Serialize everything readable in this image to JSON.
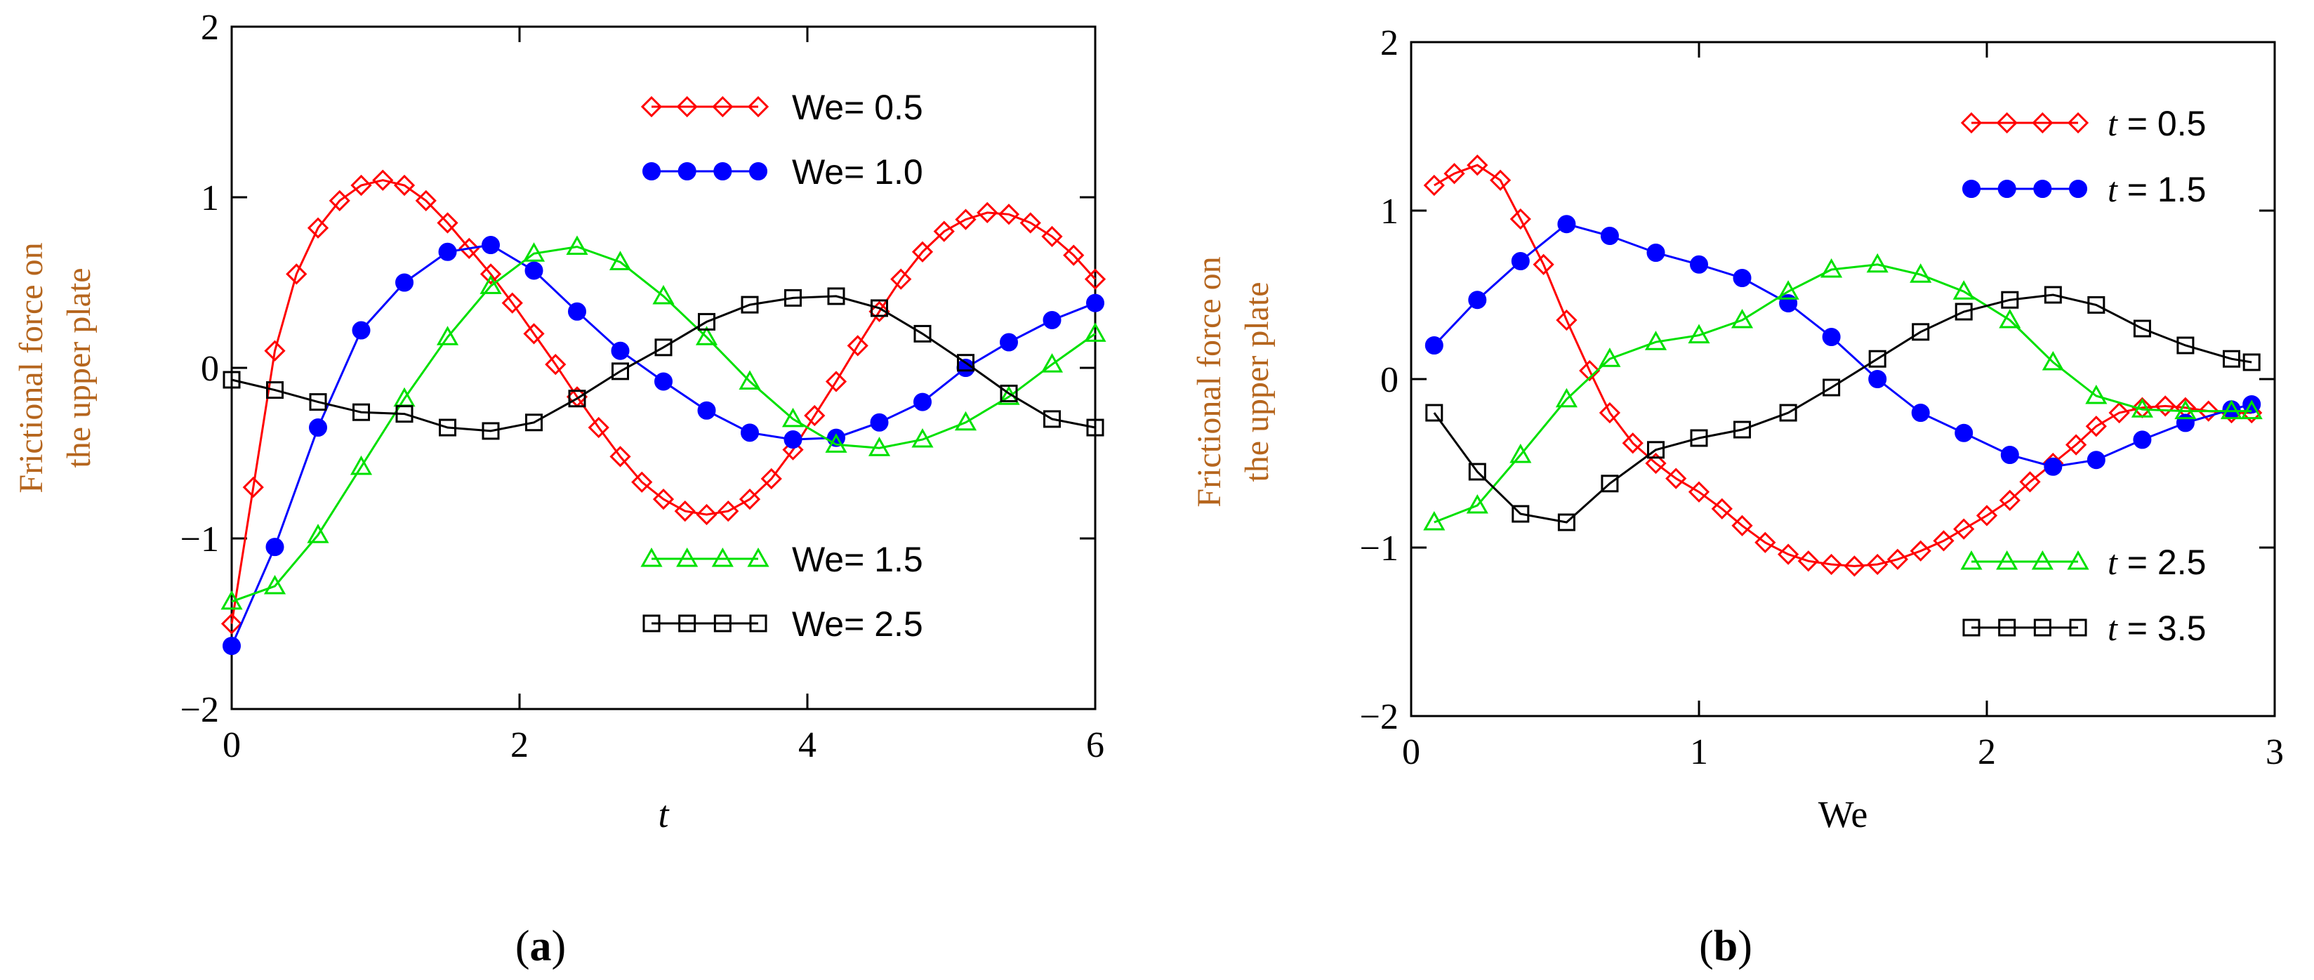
{
  "chart_data": [
    {
      "type": "line",
      "panel_label": "(a)",
      "panel_letter": "a",
      "xlabel": "t",
      "ylabel_lines": [
        "Frictional force on",
        "the upper plate"
      ],
      "xlim": [
        0,
        6
      ],
      "ylim": [
        -2,
        2
      ],
      "xticks": [
        "0",
        "2",
        "4",
        "6"
      ],
      "yticks": [
        "2",
        "1",
        "0",
        "−1",
        "−2"
      ],
      "series": [
        {
          "name": "We = 0.5",
          "label_text": "We= 0.5",
          "color": "#ff0000",
          "marker": "diamond",
          "legend_pos": "top",
          "x": [
            0,
            0.15,
            0.3,
            0.45,
            0.6,
            0.75,
            0.9,
            1.05,
            1.2,
            1.35,
            1.5,
            1.65,
            1.8,
            1.95,
            2.1,
            2.25,
            2.4,
            2.55,
            2.7,
            2.85,
            3.0,
            3.15,
            3.3,
            3.45,
            3.6,
            3.75,
            3.9,
            4.05,
            4.2,
            4.35,
            4.5,
            4.65,
            4.8,
            4.95,
            5.1,
            5.25,
            5.4,
            5.55,
            5.7,
            5.85,
            6.0
          ],
          "y": [
            -1.5,
            -0.7,
            0.1,
            0.55,
            0.82,
            0.98,
            1.07,
            1.1,
            1.07,
            0.98,
            0.85,
            0.7,
            0.55,
            0.38,
            0.2,
            0.02,
            -0.17,
            -0.35,
            -0.52,
            -0.67,
            -0.77,
            -0.84,
            -0.86,
            -0.84,
            -0.77,
            -0.65,
            -0.48,
            -0.28,
            -0.08,
            0.13,
            0.33,
            0.52,
            0.68,
            0.8,
            0.87,
            0.91,
            0.9,
            0.85,
            0.77,
            0.66,
            0.52
          ]
        },
        {
          "name": "We = 1.0",
          "label_text": "We= 1.0",
          "color": "#0000ff",
          "marker": "circle",
          "legend_pos": "top",
          "x": [
            0,
            0.3,
            0.6,
            0.9,
            1.2,
            1.5,
            1.8,
            2.1,
            2.4,
            2.7,
            3.0,
            3.3,
            3.6,
            3.9,
            4.2,
            4.5,
            4.8,
            5.1,
            5.4,
            5.7,
            6.0
          ],
          "y": [
            -1.63,
            -1.05,
            -0.35,
            0.22,
            0.5,
            0.68,
            0.72,
            0.57,
            0.33,
            0.1,
            -0.08,
            -0.25,
            -0.38,
            -0.42,
            -0.41,
            -0.32,
            -0.2,
            0.0,
            0.15,
            0.28,
            0.38
          ]
        },
        {
          "name": "We = 1.5",
          "label_text": "We= 1.5",
          "color": "#00e000",
          "marker": "triangle",
          "legend_pos": "bottom",
          "x": [
            0,
            0.3,
            0.6,
            0.9,
            1.2,
            1.5,
            1.8,
            2.1,
            2.4,
            2.7,
            3.0,
            3.3,
            3.6,
            3.9,
            4.2,
            4.5,
            4.8,
            5.1,
            5.4,
            5.7,
            6.0
          ],
          "y": [
            -1.37,
            -1.28,
            -0.98,
            -0.58,
            -0.18,
            0.18,
            0.48,
            0.67,
            0.71,
            0.62,
            0.42,
            0.18,
            -0.08,
            -0.3,
            -0.45,
            -0.47,
            -0.42,
            -0.32,
            -0.17,
            0.02,
            0.2
          ]
        },
        {
          "name": "We = 2.5",
          "label_text": "We= 2.5",
          "color": "#000000",
          "marker": "square",
          "legend_pos": "bottom",
          "x": [
            0,
            0.3,
            0.6,
            0.9,
            1.2,
            1.5,
            1.8,
            2.1,
            2.4,
            2.7,
            3.0,
            3.3,
            3.6,
            3.9,
            4.2,
            4.5,
            4.8,
            5.1,
            5.4,
            5.7,
            6.0
          ],
          "y": [
            -0.07,
            -0.13,
            -0.2,
            -0.26,
            -0.27,
            -0.35,
            -0.37,
            -0.32,
            -0.18,
            -0.02,
            0.12,
            0.27,
            0.37,
            0.41,
            0.42,
            0.35,
            0.2,
            0.03,
            -0.15,
            -0.3,
            -0.35
          ]
        }
      ]
    },
    {
      "type": "line",
      "panel_label": "(b)",
      "panel_letter": "b",
      "xlabel": "We",
      "ylabel_lines": [
        "Frictional force on",
        "the upper plate"
      ],
      "xlim": [
        0,
        3
      ],
      "ylim": [
        -2,
        2
      ],
      "xticks": [
        "0",
        "1",
        "2",
        "3"
      ],
      "yticks": [
        "2",
        "1",
        "0",
        "−1",
        "−2"
      ],
      "series": [
        {
          "name": "t = 0.5",
          "label_text": " = 0.5",
          "label_var": "t",
          "color": "#ff0000",
          "marker": "diamond",
          "legend_pos": "top",
          "x": [
            0.08,
            0.15,
            0.23,
            0.31,
            0.38,
            0.46,
            0.54,
            0.62,
            0.69,
            0.77,
            0.85,
            0.92,
            1.0,
            1.08,
            1.15,
            1.23,
            1.31,
            1.38,
            1.46,
            1.54,
            1.62,
            1.69,
            1.77,
            1.85,
            1.92,
            2.0,
            2.08,
            2.15,
            2.23,
            2.31,
            2.38,
            2.46,
            2.54,
            2.62,
            2.69,
            2.77,
            2.85,
            2.92
          ],
          "y": [
            1.15,
            1.22,
            1.27,
            1.18,
            0.95,
            0.68,
            0.35,
            0.05,
            -0.2,
            -0.38,
            -0.5,
            -0.59,
            -0.67,
            -0.77,
            -0.87,
            -0.97,
            -1.04,
            -1.08,
            -1.1,
            -1.11,
            -1.1,
            -1.07,
            -1.02,
            -0.96,
            -0.89,
            -0.81,
            -0.72,
            -0.61,
            -0.5,
            -0.39,
            -0.28,
            -0.2,
            -0.17,
            -0.16,
            -0.17,
            -0.19,
            -0.2,
            -0.2
          ]
        },
        {
          "name": "t = 1.5",
          "label_text": " = 1.5",
          "label_var": "t",
          "color": "#0000ff",
          "marker": "circle",
          "legend_pos": "top",
          "x": [
            0.08,
            0.23,
            0.38,
            0.54,
            0.69,
            0.85,
            1.0,
            1.15,
            1.31,
            1.46,
            1.62,
            1.77,
            1.92,
            2.08,
            2.23,
            2.38,
            2.54,
            2.69,
            2.85,
            2.92
          ],
          "y": [
            0.2,
            0.47,
            0.7,
            0.92,
            0.85,
            0.75,
            0.68,
            0.6,
            0.45,
            0.25,
            0.0,
            -0.2,
            -0.32,
            -0.45,
            -0.52,
            -0.48,
            -0.36,
            -0.26,
            -0.18,
            -0.15
          ]
        },
        {
          "name": "t = 2.5",
          "label_text": " = 2.5",
          "label_var": "t",
          "color": "#00e000",
          "marker": "triangle",
          "legend_pos": "bottom",
          "x": [
            0.08,
            0.23,
            0.38,
            0.54,
            0.69,
            0.85,
            1.0,
            1.15,
            1.31,
            1.46,
            1.62,
            1.77,
            1.92,
            2.08,
            2.23,
            2.38,
            2.54,
            2.69,
            2.85,
            2.92
          ],
          "y": [
            -0.85,
            -0.75,
            -0.45,
            -0.12,
            0.12,
            0.22,
            0.26,
            0.35,
            0.52,
            0.65,
            0.68,
            0.62,
            0.52,
            0.35,
            0.1,
            -0.1,
            -0.18,
            -0.19,
            -0.19,
            -0.19
          ]
        },
        {
          "name": "t = 3.5",
          "label_text": " = 3.5",
          "label_var": "t",
          "color": "#000000",
          "marker": "square",
          "legend_pos": "bottom",
          "x": [
            0.08,
            0.23,
            0.38,
            0.54,
            0.69,
            0.85,
            1.0,
            1.15,
            1.31,
            1.46,
            1.62,
            1.77,
            1.92,
            2.08,
            2.23,
            2.38,
            2.54,
            2.69,
            2.85,
            2.92
          ],
          "y": [
            -0.2,
            -0.55,
            -0.8,
            -0.85,
            -0.62,
            -0.42,
            -0.35,
            -0.3,
            -0.2,
            -0.05,
            0.12,
            0.28,
            0.4,
            0.47,
            0.5,
            0.44,
            0.3,
            0.2,
            0.12,
            0.1
          ]
        }
      ]
    }
  ]
}
